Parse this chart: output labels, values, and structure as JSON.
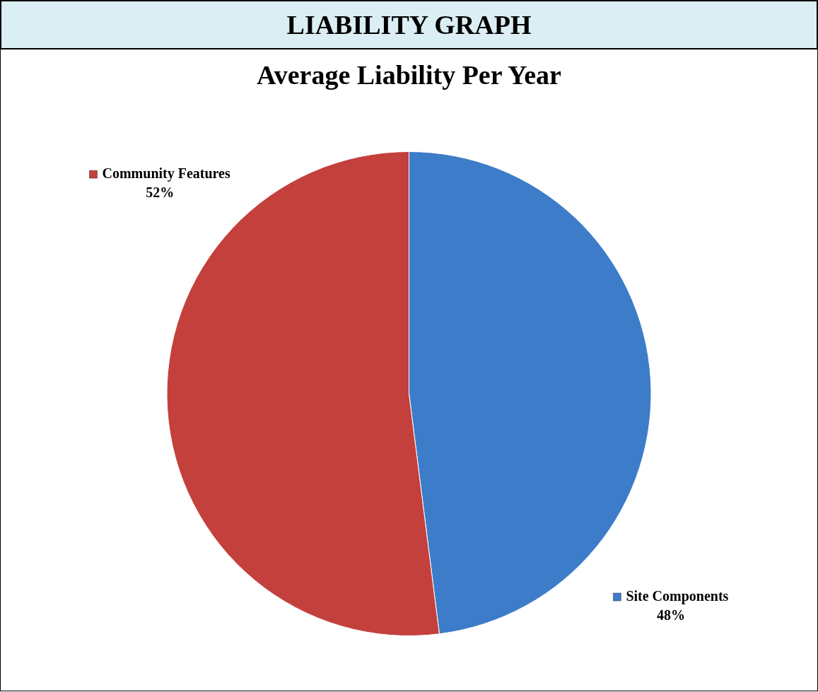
{
  "chart_data": {
    "type": "pie",
    "title": "LIABILITY GRAPH",
    "subtitle": "Average Liability Per Year",
    "categories": [
      "Site Components",
      "Community Features"
    ],
    "values": [
      48,
      52
    ],
    "value_labels": [
      "48%",
      "52%"
    ],
    "colors": [
      "#3d7cc9",
      "#c4403c"
    ],
    "legend": "top left"
  }
}
